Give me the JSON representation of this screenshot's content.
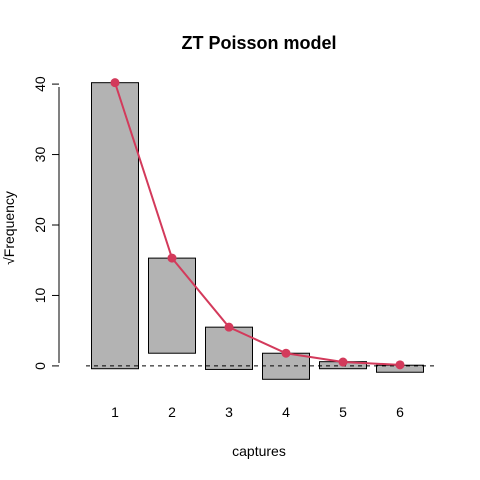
{
  "chart_data": {
    "type": "bar",
    "title": "ZT Poisson model",
    "xlabel": "captures",
    "ylabel": "√Frequency",
    "categories": [
      "1",
      "2",
      "3",
      "4",
      "5",
      "6"
    ],
    "bar_top": [
      40.2,
      15.3,
      5.5,
      1.8,
      0.6,
      0.1
    ],
    "bar_bottom": [
      -0.4,
      1.8,
      -0.5,
      -1.9,
      -0.4,
      -0.9
    ],
    "expected": [
      40.2,
      15.3,
      5.5,
      1.8,
      0.55,
      0.15
    ],
    "ylim": [
      -2,
      42
    ],
    "yticks": [
      0,
      10,
      20,
      30,
      40
    ],
    "fit_color": "#d33a5b",
    "bar_color": "#b3b3b3",
    "reference_line": 0,
    "grid": false,
    "legend": "none"
  }
}
